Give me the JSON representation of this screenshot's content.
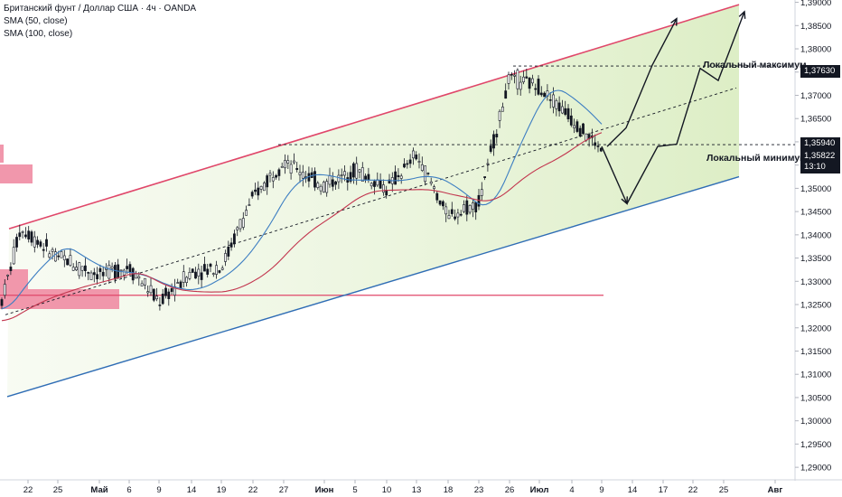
{
  "legend": {
    "title": "Британский фунт / Доллар США · 4ч · OANDA",
    "sma50": "SMA (50, close)",
    "sma100": "SMA (100, close)"
  },
  "annotations": {
    "local_max": "Локальный максимум",
    "local_min": "Локальный минимум"
  },
  "price_tags": {
    "local_max_price": "1,37630",
    "local_min_price": "1,35940",
    "last_price": "1,35822",
    "countdown": "13:10"
  },
  "colors": {
    "channel_top": "#e0476a",
    "channel_bottom": "#2f6db5",
    "sma50": "#3d7ec2",
    "sma100": "#c2344d",
    "zone_fill": "#f08ca3",
    "candle": "#131722",
    "channel_fill": "#e6f3d3"
  },
  "chart_data": {
    "type": "candlestick",
    "symbol": "GBPUSD",
    "interval": "4ч",
    "ylim": [
      1.2875,
      1.3905
    ],
    "y_ticks": [
      "1,39000",
      "1,38500",
      "1,38000",
      "1,37500",
      "1,37000",
      "1,36500",
      "1,36000",
      "1,35500",
      "1,35000",
      "1,34500",
      "1,34000",
      "1,33500",
      "1,33000",
      "1,32500",
      "1,32000",
      "1,31500",
      "1,31000",
      "1,30500",
      "1,30000",
      "1,29500",
      "1,29000"
    ],
    "x_ticks": [
      "22",
      "25",
      "Май",
      "6",
      "9",
      "14",
      "19",
      "22",
      "27",
      "Июн",
      "5",
      "10",
      "13",
      "18",
      "23",
      "26",
      "Июл",
      "4",
      "9",
      "14",
      "17",
      "22",
      "25",
      "Авг"
    ],
    "close_path": [
      [
        "22",
        1.3405
      ],
      [
        "25",
        1.335
      ],
      [
        "Май",
        1.3315
      ],
      [
        "6",
        1.333
      ],
      [
        "9",
        1.3255
      ],
      [
        "14",
        1.332
      ],
      [
        "19",
        1.333
      ],
      [
        "22",
        1.348
      ],
      [
        "27",
        1.356
      ],
      [
        "Июн",
        1.3505
      ],
      [
        "5",
        1.354
      ],
      [
        "10",
        1.35
      ],
      [
        "13",
        1.357
      ],
      [
        "18",
        1.344
      ],
      [
        "23",
        1.347
      ],
      [
        "26",
        1.374
      ],
      [
        "Июл",
        1.372
      ],
      [
        "4",
        1.365
      ],
      [
        "9",
        1.3582
      ]
    ],
    "price_lines": [
      {
        "label": "Локальный максимум",
        "value": 1.3763
      },
      {
        "label": "Локальный минимум",
        "value": 1.3594
      }
    ],
    "support_level": 1.327,
    "last_price": 1.35822
  }
}
